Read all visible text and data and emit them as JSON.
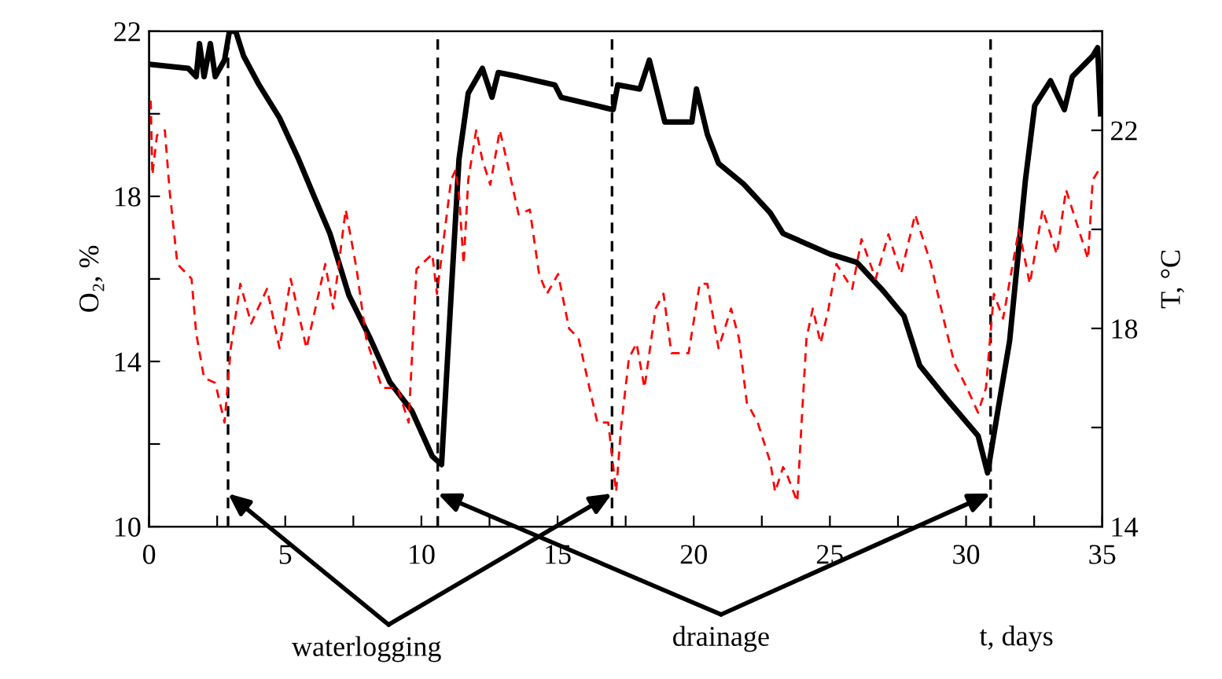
{
  "chart_data": {
    "type": "line",
    "xlabel": "t, days",
    "ylabel": "O₂, %",
    "y2label": "T, °C",
    "annotations": [
      {
        "text": "waterlogging",
        "x": 2.9,
        "y": 10.8
      },
      {
        "text": "drainage",
        "x": 10.6,
        "y": 10.8
      }
    ],
    "xlim": [
      0,
      35
    ],
    "xticks": [
      0,
      {
        "value": 2.5,
        "label": null
      },
      5,
      {
        "value": 7.5,
        "label": null
      },
      10,
      {
        "value": 12.5,
        "label": null
      },
      15,
      {
        "value": 17.5,
        "label": null
      },
      20,
      {
        "value": 22.5,
        "label": null
      },
      25,
      {
        "value": 27.5,
        "label": null
      },
      30,
      {
        "value": 32.5,
        "label": null
      },
      35
    ],
    "ylim": [
      10,
      22
    ],
    "yticks": [
      10,
      {
        "value": 12,
        "label": null
      },
      14,
      {
        "value": 16,
        "label": null
      },
      18,
      {
        "value": 20,
        "label": null
      },
      22
    ],
    "y2lim": [
      14,
      24
    ],
    "y2ticks": [
      14,
      {
        "value": 16,
        "label": null
      },
      18,
      {
        "value": 20,
        "label": null
      },
      22,
      {
        "value": 24,
        "label": null
      }
    ],
    "grid": false,
    "legend": false,
    "marker": "none",
    "ref_lines": [
      {
        "axis": "x",
        "value": 2.9,
        "color": "#000000",
        "line_style": "dashed"
      },
      {
        "axis": "x",
        "value": 10.6,
        "color": "#000000",
        "line_style": "dashed"
      },
      {
        "axis": "x",
        "value": 17.0,
        "color": "#000000",
        "line_style": "dashed"
      },
      {
        "axis": "x",
        "value": 30.9,
        "color": "#000000",
        "line_style": "dashed"
      }
    ],
    "series": [
      {
        "color": "#000000",
        "line_style": "solid",
        "x": [
          0,
          1.44,
          1.73,
          1.85,
          2.02,
          2.25,
          2.43,
          2.77,
          2.95,
          3.18,
          3.47,
          4.04,
          4.79,
          5.49,
          6.06,
          6.64,
          7.34,
          8.09,
          8.84,
          9.65,
          10.4,
          10.74,
          11.09,
          11.38,
          11.72,
          12.24,
          12.59,
          12.82,
          13.57,
          14.9,
          15.13,
          17.04,
          17.21,
          18.02,
          18.37,
          18.94,
          19.93,
          20.1,
          20.5,
          20.91,
          21.83,
          22.81,
          23.28,
          25.01,
          25.99,
          26.97,
          27.72,
          28.3,
          29.28,
          30.44,
          30.79,
          31.19,
          31.6,
          32.18,
          32.52,
          33.1,
          33.61,
          33.9,
          34.65,
          34.83,
          34.94
        ],
        "values": [
          21.2,
          21.1,
          20.9,
          21.7,
          20.9,
          21.7,
          20.9,
          21.3,
          22.0,
          22.0,
          21.4,
          20.7,
          19.9,
          18.9,
          18.0,
          17.1,
          15.6,
          14.6,
          13.5,
          12.8,
          11.7,
          11.5,
          15.6,
          18.9,
          20.5,
          21.1,
          20.4,
          21.0,
          20.9,
          20.7,
          20.4,
          20.1,
          20.7,
          20.6,
          21.3,
          19.8,
          19.8,
          20.6,
          19.5,
          18.8,
          18.3,
          17.6,
          17.1,
          16.6,
          16.4,
          15.7,
          15.1,
          13.9,
          13.1,
          12.2,
          11.3,
          12.9,
          14.5,
          18.4,
          20.2,
          20.8,
          20.1,
          20.9,
          21.4,
          21.6,
          20.0
        ]
      },
      {
        "color": "#ff0000",
        "line_style": "dashed",
        "axis": "y2",
        "x": [
          0.06,
          0.12,
          0.29,
          0.58,
          0.75,
          1.04,
          1.56,
          1.73,
          2.02,
          2.43,
          2.77,
          3.0,
          3.35,
          3.75,
          4.33,
          4.79,
          5.2,
          5.78,
          6.47,
          6.76,
          7.22,
          7.62,
          7.97,
          8.55,
          9.13,
          9.53,
          9.82,
          10.4,
          10.57,
          11.09,
          11.26,
          11.38,
          11.55,
          11.72,
          12.01,
          12.24,
          12.53,
          12.88,
          13.17,
          13.57,
          13.98,
          14.32,
          14.61,
          15.02,
          15.42,
          15.77,
          16.17,
          16.46,
          16.86,
          17.15,
          17.33,
          17.62,
          17.9,
          18.19,
          18.6,
          18.89,
          19.18,
          19.81,
          20.22,
          20.5,
          20.91,
          21.37,
          21.66,
          21.95,
          22.35,
          22.81,
          22.99,
          23.28,
          23.39,
          23.8,
          23.97,
          24.14,
          24.37,
          24.66,
          24.95,
          25.24,
          25.82,
          26.16,
          26.68,
          27.15,
          27.61,
          28.13,
          28.71,
          29.17,
          29.57,
          30.03,
          30.44,
          30.73,
          31.02,
          31.36,
          31.94,
          32.34,
          32.81,
          33.33,
          33.67,
          34.19,
          34.48,
          34.65,
          34.88
        ],
        "values": [
          22.6,
          21.1,
          21.9,
          22.0,
          20.8,
          19.3,
          19.0,
          17.9,
          17.0,
          16.9,
          16.1,
          17.6,
          18.9,
          18.1,
          18.8,
          17.6,
          19.0,
          17.6,
          19.3,
          18.4,
          20.4,
          19.2,
          17.8,
          16.8,
          16.8,
          16.1,
          19.2,
          19.5,
          18.7,
          21.0,
          21.2,
          20.7,
          19.3,
          21.0,
          22.0,
          21.4,
          20.9,
          22.0,
          21.3,
          20.3,
          20.4,
          19.1,
          18.7,
          19.1,
          18.0,
          17.8,
          16.8,
          16.1,
          16.1,
          14.7,
          16.0,
          17.4,
          17.7,
          16.8,
          18.4,
          18.7,
          17.5,
          17.5,
          18.9,
          18.9,
          17.6,
          18.4,
          17.8,
          16.5,
          16.1,
          15.3,
          14.7,
          15.2,
          15.1,
          14.5,
          16.2,
          17.8,
          18.4,
          17.7,
          18.4,
          19.3,
          18.8,
          19.8,
          19.0,
          19.9,
          19.1,
          20.3,
          19.3,
          18.2,
          17.3,
          16.8,
          16.3,
          16.8,
          18.7,
          18.2,
          20.0,
          18.9,
          20.4,
          19.5,
          20.8,
          19.9,
          19.4,
          21.0,
          21.2
        ]
      }
    ]
  }
}
